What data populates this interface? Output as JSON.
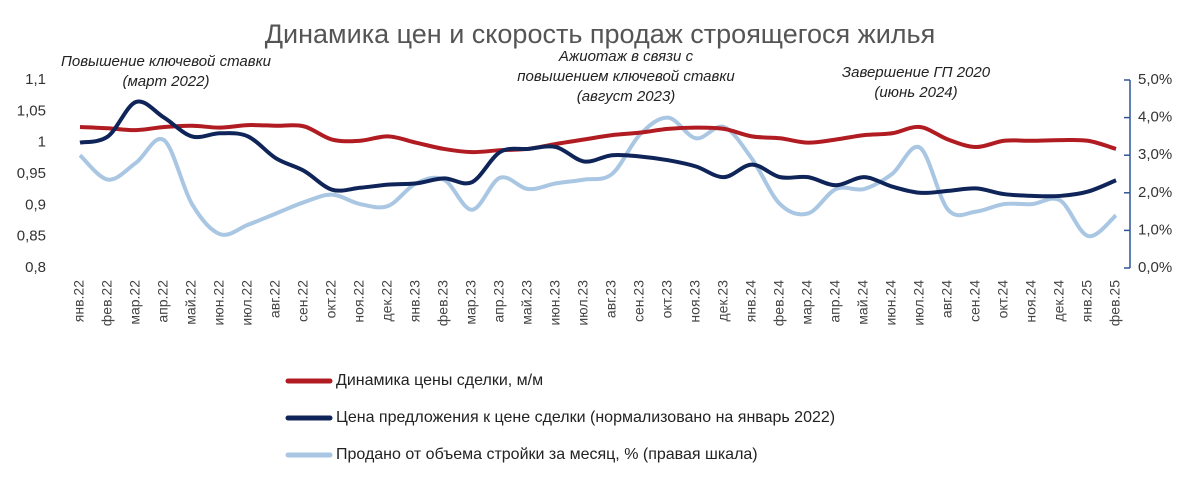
{
  "chart_data": {
    "type": "line",
    "title": "Динамика цен и скорость продаж строящегося жилья",
    "annotations": [
      [
        "Повышение ключевой ставки",
        "(март 2022)"
      ],
      [
        "Ажиотаж в связи с",
        "повышением ключевой ставки",
        "(август 2023)"
      ],
      [
        "Завершение ГП 2020",
        "(июнь 2024)"
      ]
    ],
    "categories": [
      "янв.22",
      "фев.22",
      "мар.22",
      "апр.22",
      "май.22",
      "июн.22",
      "июл.22",
      "авг.22",
      "сен.22",
      "окт.22",
      "ноя.22",
      "дек.22",
      "янв.23",
      "фев.23",
      "мар.23",
      "апр.23",
      "май.23",
      "июн.23",
      "июл.23",
      "авг.23",
      "сен.23",
      "окт.23",
      "ноя.23",
      "дек.23",
      "янв.24",
      "фев.24",
      "мар.24",
      "апр.24",
      "май.24",
      "июн.24",
      "июл.24",
      "авг.24",
      "сен.24",
      "окт.24",
      "ноя.24",
      "дек.24",
      "янв.25",
      "фев.25"
    ],
    "series": [
      {
        "name": "Динамика цены сделки, м/м",
        "color": "#b01c22",
        "values": [
          1.025,
          1.023,
          1.02,
          1.025,
          1.027,
          1.024,
          1.028,
          1.027,
          1.026,
          1.005,
          1.003,
          1.01,
          1.0,
          0.99,
          0.985,
          0.988,
          0.99,
          0.998,
          1.005,
          1.012,
          1.016,
          1.022,
          1.024,
          1.022,
          1.01,
          1.007,
          1.0,
          1.005,
          1.012,
          1.015,
          1.025,
          1.005,
          0.993,
          1.003,
          1.003,
          1.004,
          1.003,
          0.99
        ]
      },
      {
        "name": "Цена предложения к цене сделки (нормализовано на январь 2022)",
        "color": "#0f2458",
        "values": [
          1.0,
          1.01,
          1.065,
          1.04,
          1.01,
          1.015,
          1.01,
          0.975,
          0.955,
          0.925,
          0.928,
          0.933,
          0.935,
          0.943,
          0.937,
          0.985,
          0.99,
          0.993,
          0.97,
          0.98,
          0.978,
          0.972,
          0.962,
          0.945,
          0.965,
          0.945,
          0.945,
          0.932,
          0.945,
          0.93,
          0.92,
          0.923,
          0.927,
          0.918,
          0.915,
          0.915,
          0.922,
          0.94
        ]
      },
      {
        "name": "Продано от объема стройки за месяц, % (правая шкала)",
        "color": "#a9c6e2",
        "axis": "y2",
        "values": [
          3.0,
          2.35,
          2.8,
          3.4,
          1.7,
          0.9,
          1.15,
          1.45,
          1.75,
          1.95,
          1.7,
          1.65,
          2.25,
          2.35,
          1.55,
          2.4,
          2.1,
          2.25,
          2.35,
          2.5,
          3.55,
          4.0,
          3.45,
          3.75,
          2.9,
          1.7,
          1.45,
          2.1,
          2.1,
          2.5,
          3.2,
          1.55,
          1.5,
          1.7,
          1.7,
          1.8,
          0.85,
          1.4
        ]
      }
    ],
    "ylim": [
      0.8,
      1.1
    ],
    "yticks": [
      {
        "value": 0.8,
        "label": "0,8"
      },
      {
        "value": 0.85,
        "label": "0,85"
      },
      {
        "value": 0.9,
        "label": "0,9"
      },
      {
        "value": 0.95,
        "label": "0,95"
      },
      1,
      {
        "value": 1.05,
        "label": "1,05"
      },
      {
        "value": 1.1,
        "label": "1,1"
      }
    ],
    "y2lim": [
      0,
      5
    ],
    "y2ticks": [
      {
        "value": 0,
        "label": "0,0%"
      },
      {
        "value": 1,
        "label": "1,0%"
      },
      {
        "value": 2,
        "label": "2,0%"
      },
      {
        "value": 3,
        "label": "3,0%"
      },
      {
        "value": 4,
        "label": "4,0%"
      },
      {
        "value": 5,
        "label": "5,0%"
      }
    ],
    "grid": false
  }
}
